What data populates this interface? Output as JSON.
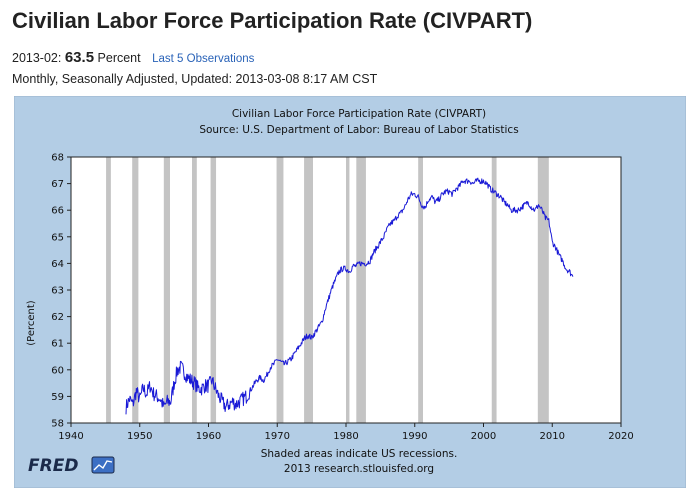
{
  "header": {
    "title": "Civilian Labor Force Participation Rate (CIVPART)",
    "obs_date": "2013-02:",
    "obs_value": "63.5",
    "obs_unit": "Percent",
    "last_obs_link": "Last 5 Observations",
    "meta": "Monthly, Seasonally Adjusted, Updated: 2013-03-08 8:17 AM CST"
  },
  "colors": {
    "panel_bg": "#b3cde5",
    "plot_bg": "#ffffff",
    "line": "#1a1ad6",
    "recession": "#c4c4c4",
    "link": "#2a63b8"
  },
  "chart_data": {
    "type": "line",
    "title": "Civilian Labor Force Participation Rate (CIVPART)",
    "subtitle": "Source: U.S. Department of Labor: Bureau of Labor Statistics",
    "ylabel": "(Percent)",
    "xlabel": "",
    "xlim": [
      1940,
      2020
    ],
    "ylim": [
      58,
      68
    ],
    "x_ticks": [
      1940,
      1950,
      1960,
      1970,
      1980,
      1990,
      2000,
      2010,
      2020
    ],
    "y_ticks": [
      58,
      59,
      60,
      61,
      62,
      63,
      64,
      65,
      66,
      67,
      68
    ],
    "grid": false,
    "footnote": "Shaded areas indicate US recessions.",
    "credit": "2013 research.stlouisfed.org",
    "logo": "FRED",
    "recessions": [
      [
        1945.1,
        1945.8
      ],
      [
        1948.9,
        1949.8
      ],
      [
        1953.5,
        1954.4
      ],
      [
        1957.6,
        1958.3
      ],
      [
        1960.3,
        1961.1
      ],
      [
        1969.9,
        1970.9
      ],
      [
        1973.9,
        1975.2
      ],
      [
        1980.0,
        1980.5
      ],
      [
        1981.5,
        1982.9
      ],
      [
        1990.5,
        1991.2
      ],
      [
        2001.2,
        2001.9
      ],
      [
        2007.9,
        2009.5
      ]
    ],
    "series": [
      {
        "x": [
          1948.0,
          1948.5,
          1949.0,
          1949.5,
          1950.0,
          1950.5,
          1951.0,
          1951.5,
          1952.0,
          1952.5,
          1953.0,
          1953.5,
          1954.0,
          1954.5,
          1955.0,
          1955.5,
          1956.0,
          1956.5,
          1957.0,
          1957.5,
          1958.0,
          1958.5,
          1959.0,
          1959.5,
          1960.0,
          1960.5,
          1961.0,
          1961.5,
          1962.0,
          1962.5,
          1963.0,
          1963.5,
          1964.0,
          1964.5,
          1965.0,
          1965.5,
          1966.0,
          1966.5,
          1967.0,
          1967.5,
          1968.0,
          1968.5,
          1969.0,
          1969.5,
          1970.0,
          1970.5,
          1971.0,
          1971.5,
          1972.0,
          1972.5,
          1973.0,
          1973.5,
          1974.0,
          1974.5,
          1975.0,
          1975.5,
          1976.0,
          1976.5,
          1977.0,
          1977.5,
          1978.0,
          1978.5,
          1979.0,
          1979.5,
          1980.0,
          1980.5,
          1981.0,
          1981.5,
          1982.0,
          1982.5,
          1983.0,
          1983.5,
          1984.0,
          1984.5,
          1985.0,
          1985.5,
          1986.0,
          1986.5,
          1987.0,
          1987.5,
          1988.0,
          1988.5,
          1989.0,
          1989.5,
          1990.0,
          1990.5,
          1991.0,
          1991.5,
          1992.0,
          1992.5,
          1993.0,
          1993.5,
          1994.0,
          1994.5,
          1995.0,
          1995.5,
          1996.0,
          1996.5,
          1997.0,
          1997.5,
          1998.0,
          1998.5,
          1999.0,
          1999.5,
          2000.0,
          2000.5,
          2001.0,
          2001.5,
          2002.0,
          2002.5,
          2003.0,
          2003.5,
          2004.0,
          2004.5,
          2005.0,
          2005.5,
          2006.0,
          2006.5,
          2007.0,
          2007.5,
          2008.0,
          2008.5,
          2009.0,
          2009.5,
          2010.0,
          2010.5,
          2011.0,
          2011.5,
          2012.0,
          2012.5,
          2013.0
        ],
        "y": [
          58.6,
          58.9,
          58.7,
          59.2,
          58.9,
          59.3,
          59.1,
          59.4,
          59.1,
          59.0,
          58.9,
          58.6,
          58.8,
          58.8,
          59.5,
          60.0,
          60.1,
          59.9,
          59.7,
          59.6,
          59.5,
          59.3,
          59.3,
          59.4,
          59.4,
          59.6,
          59.3,
          59.0,
          58.8,
          58.6,
          58.7,
          58.8,
          58.7,
          58.8,
          58.9,
          59.0,
          59.2,
          59.4,
          59.6,
          59.7,
          59.6,
          59.8,
          60.1,
          60.2,
          60.4,
          60.3,
          60.2,
          60.3,
          60.4,
          60.6,
          60.8,
          61.0,
          61.2,
          61.3,
          61.2,
          61.4,
          61.6,
          61.8,
          62.3,
          62.7,
          63.1,
          63.4,
          63.7,
          63.8,
          63.8,
          63.7,
          63.9,
          63.9,
          64.0,
          64.0,
          64.0,
          64.1,
          64.4,
          64.6,
          64.8,
          65.0,
          65.3,
          65.5,
          65.6,
          65.8,
          65.9,
          66.1,
          66.4,
          66.6,
          66.6,
          66.5,
          66.2,
          66.1,
          66.4,
          66.5,
          66.3,
          66.4,
          66.6,
          66.7,
          66.7,
          66.6,
          66.8,
          66.9,
          67.1,
          67.1,
          67.1,
          67.0,
          67.1,
          67.1,
          67.1,
          67.0,
          66.8,
          66.7,
          66.6,
          66.5,
          66.3,
          66.2,
          66.0,
          66.0,
          66.0,
          66.1,
          66.2,
          66.3,
          66.1,
          66.0,
          66.2,
          66.0,
          65.7,
          65.6,
          64.8,
          64.6,
          64.3,
          64.1,
          63.8,
          63.7,
          63.5
        ],
        "line_style": "noisy"
      }
    ]
  }
}
